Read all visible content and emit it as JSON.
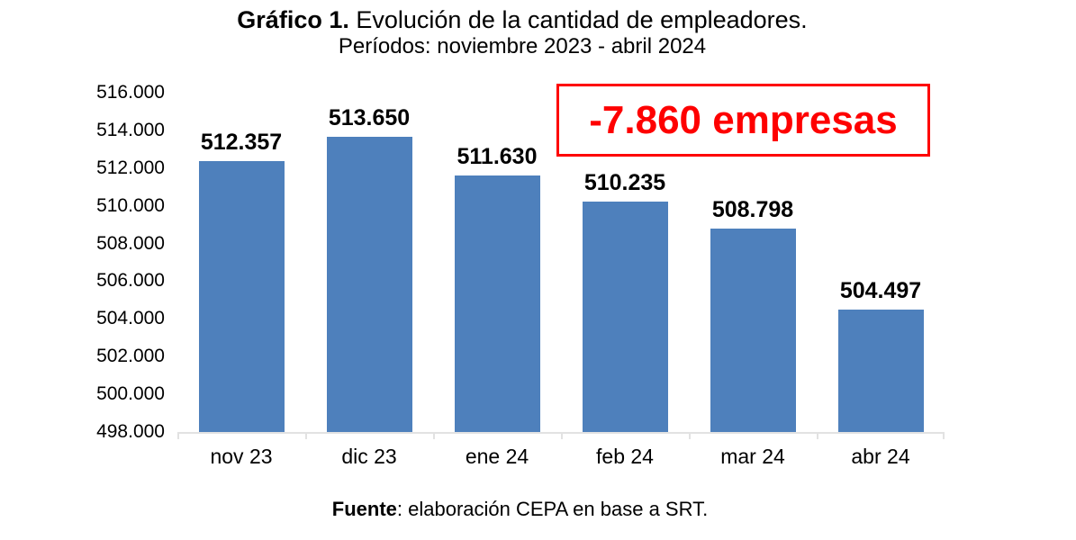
{
  "chart": {
    "title_bold": "Gráfico 1.",
    "title_rest": " Evolución de la cantidad de empleadores.",
    "subtitle": "Períodos: noviembre 2023 - abril 2024",
    "annotation": "-7.860 empresas",
    "source_bold": "Fuente",
    "source_rest": ": elaboración CEPA en base a SRT."
  },
  "chart_data": {
    "type": "bar",
    "title": "Gráfico 1. Evolución de la cantidad de empleadores.",
    "subtitle": "Períodos: noviembre 2023 - abril 2024",
    "categories": [
      "nov 23",
      "dic 23",
      "ene 24",
      "feb 24",
      "mar 24",
      "abr 24"
    ],
    "values": [
      512357,
      513650,
      511630,
      510235,
      508798,
      504497
    ],
    "value_labels": [
      "512.357",
      "513.650",
      "511.630",
      "510.235",
      "508.798",
      "504.497"
    ],
    "xlabel": "",
    "ylabel": "",
    "ylim": [
      498000,
      516000
    ],
    "ytick_step": 2000,
    "ytick_labels_top_to_bottom": [
      "516.000",
      "514.000",
      "512.000",
      "510.000",
      "508.000",
      "506.000",
      "504.000",
      "502.000",
      "500.000",
      "498.000"
    ],
    "grid": false,
    "legend": "none",
    "annotation": "-7.860 empresas",
    "source": "Fuente: elaboración CEPA en base a SRT.",
    "colors": {
      "bar": "#4e80bc",
      "axis_line": "#e2e2e2",
      "annotation_red": "#fe0000",
      "text": "#000000",
      "background": "#ffffff"
    }
  }
}
